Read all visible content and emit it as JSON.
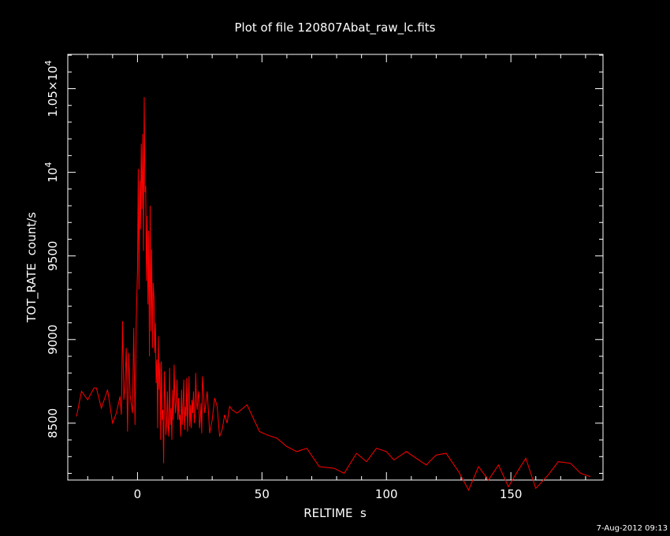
{
  "chart_data": {
    "type": "line",
    "title": "Plot of file 120807Abat_raw_lc.fits",
    "xlabel": "RELTIME  s",
    "ylabel": "TOT_RATE  count/s",
    "xlim": [
      -28,
      187
    ],
    "ylim": [
      8160,
      10705
    ],
    "grid": false,
    "series_color": "#ff0000",
    "axis_color": "#ffffff",
    "background": "#000000",
    "x_ticks": [
      {
        "value": 0,
        "label": "0"
      },
      {
        "value": 50,
        "label": "50"
      },
      {
        "value": 100,
        "label": "100"
      },
      {
        "value": 150,
        "label": "150"
      }
    ],
    "y_ticks": [
      {
        "value": 8500,
        "label": "8500"
      },
      {
        "value": 9000,
        "label": "9000"
      },
      {
        "value": 9500,
        "label": "9500"
      },
      {
        "value": 10000,
        "label": "10",
        "exp": "4"
      },
      {
        "value": 10500,
        "label": "1.05×10",
        "exp": "4"
      }
    ],
    "series": [
      {
        "x": [
          -24.5,
          -22.5,
          -20,
          -17.5,
          -16.5,
          -14.5,
          -12,
          -10,
          -8.5,
          -7,
          -6.5,
          -6,
          -5.5,
          -5,
          -4.5,
          -4,
          -3.5,
          -3,
          -2,
          -1.5,
          -1,
          -0.5,
          0,
          0.3,
          0.6,
          0.9,
          1.2,
          1.5,
          1.8,
          2.1,
          2.4,
          2.7,
          3,
          3.3,
          3.6,
          3.9,
          4.2,
          4.5,
          4.8,
          5.1,
          5.4,
          5.7,
          6,
          6.3,
          6.6,
          6.9,
          7.2,
          7.5,
          7.8,
          8.1,
          8.4,
          8.7,
          9,
          9.3,
          9.6,
          9.9,
          10.2,
          10.5,
          10.8,
          11.1,
          11.4,
          11.7,
          12,
          12.3,
          12.6,
          12.9,
          13.2,
          13.5,
          13.8,
          14.1,
          14.4,
          14.7,
          15,
          15.3,
          15.6,
          15.9,
          16.2,
          16.5,
          16.8,
          17.1,
          17.4,
          17.7,
          18,
          18.3,
          18.6,
          18.9,
          19.2,
          19.5,
          19.8,
          20.1,
          20.4,
          20.7,
          21,
          21.3,
          21.6,
          21.9,
          22.2,
          22.5,
          22.8,
          23.1,
          23.4,
          23.7,
          24,
          24.3,
          24.6,
          24.9,
          25.2,
          25.5,
          25.8,
          26.1,
          27,
          28,
          29,
          30,
          31,
          32,
          33,
          34,
          35,
          36,
          37,
          38,
          40,
          44,
          49,
          52,
          56,
          60,
          64,
          68,
          73,
          79,
          83,
          88,
          92,
          96,
          100,
          103,
          108,
          112,
          116,
          120,
          124,
          129,
          133,
          137,
          141,
          145,
          149,
          153,
          156,
          160,
          165,
          169,
          174,
          178,
          182
        ],
        "values": [
          8540,
          8690,
          8640,
          8710,
          8710,
          8590,
          8700,
          8500,
          8560,
          8660,
          8550,
          9110,
          8640,
          8720,
          8950,
          8450,
          8920,
          8670,
          8560,
          9070,
          8490,
          9100,
          9410,
          10020,
          9300,
          9950,
          9660,
          10170,
          9780,
          10230,
          9530,
          10450,
          9880,
          9920,
          9350,
          9740,
          9210,
          9650,
          8900,
          9800,
          9050,
          9540,
          8950,
          9340,
          9250,
          8920,
          9100,
          8740,
          8880,
          8470,
          9020,
          8700,
          8860,
          8400,
          8870,
          8520,
          8580,
          8260,
          8810,
          8640,
          8430,
          8500,
          8690,
          8480,
          8420,
          8830,
          8490,
          8590,
          8400,
          8700,
          8520,
          8850,
          8650,
          8560,
          8640,
          8760,
          8520,
          8650,
          8520,
          8550,
          8420,
          8700,
          8490,
          8610,
          8760,
          8460,
          8600,
          8540,
          8770,
          8450,
          8640,
          8780,
          8480,
          8610,
          8470,
          8640,
          8560,
          8690,
          8500,
          8550,
          8800,
          8620,
          8580,
          8660,
          8690,
          8470,
          8520,
          8620,
          8440,
          8780,
          8560,
          8690,
          8440,
          8520,
          8650,
          8600,
          8420,
          8460,
          8550,
          8500,
          8600,
          8580,
          8560,
          8610,
          8450,
          8430,
          8410,
          8360,
          8330,
          8350,
          8240,
          8230,
          8200,
          8320,
          8270,
          8350,
          8330,
          8280,
          8330,
          8290,
          8250,
          8310,
          8320,
          8210,
          8100,
          8240,
          8160,
          8250,
          8120,
          8220,
          8290,
          8110,
          8190,
          8270,
          8260,
          8200,
          8180
        ]
      }
    ]
  },
  "footer": {
    "timestamp": "7-Aug-2012 09:13"
  }
}
